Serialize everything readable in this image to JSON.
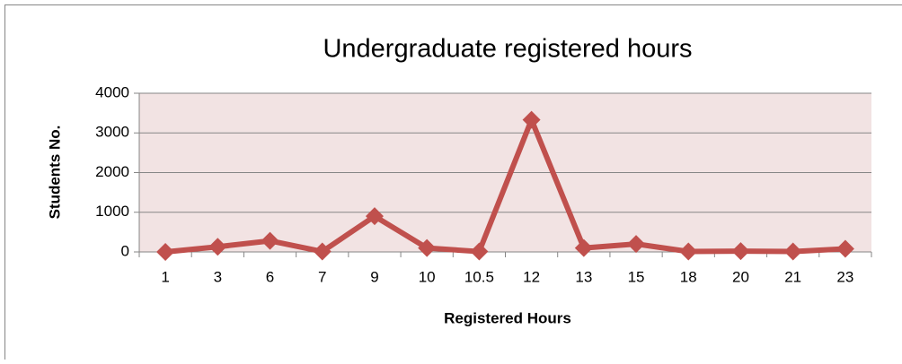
{
  "chart_data": {
    "type": "line",
    "title": "Undergraduate registered hours",
    "x_label": "Registered Hours",
    "y_label": "Students No.",
    "categories": [
      "1",
      "3",
      "6",
      "7",
      "9",
      "10",
      "10.5",
      "12",
      "13",
      "15",
      "18",
      "20",
      "21",
      "23"
    ],
    "series": [
      {
        "name": "Students No.",
        "color": "#c0504d",
        "values": [
          0,
          130,
          280,
          10,
          900,
          100,
          10,
          3330,
          100,
          200,
          10,
          20,
          10,
          80
        ]
      }
    ],
    "ylim": [
      0,
      4000
    ],
    "yticks": [
      0,
      1000,
      2000,
      3000,
      4000
    ],
    "grid": true
  }
}
